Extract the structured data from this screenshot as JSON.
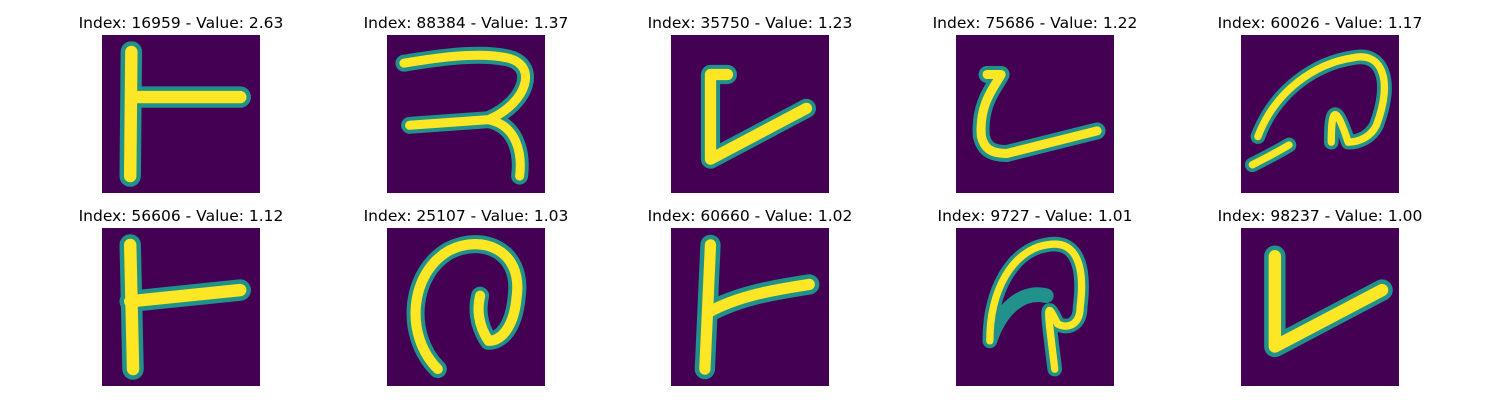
{
  "panels": [
    {
      "title": "Index: 16959 - Value: 2.63",
      "glyph": "t-shape"
    },
    {
      "title": "Index: 88384 - Value: 1.37",
      "glyph": "r-shape"
    },
    {
      "title": "Index: 35750 - Value: 1.23",
      "glyph": "check-shape"
    },
    {
      "title": "Index: 75686 - Value: 1.22",
      "glyph": "hook-shape"
    },
    {
      "title": "Index: 60026 - Value: 1.17",
      "glyph": "spiral-shape"
    },
    {
      "title": "Index: 56606 - Value: 1.12",
      "glyph": "t-shape"
    },
    {
      "title": "Index: 25107 - Value: 1.03",
      "glyph": "spiral-shape"
    },
    {
      "title": "Index: 60660 - Value: 1.02",
      "glyph": "t-shape"
    },
    {
      "title": "Index: 9727 - Value: 1.01",
      "glyph": "loop-shape"
    },
    {
      "title": "Index: 98237 - Value: 1.00",
      "glyph": "v-shape"
    }
  ],
  "colors": {
    "background": "#440154",
    "stroke_edge": "#21918c",
    "stroke_core": "#fde725",
    "page": "#ffffff"
  }
}
